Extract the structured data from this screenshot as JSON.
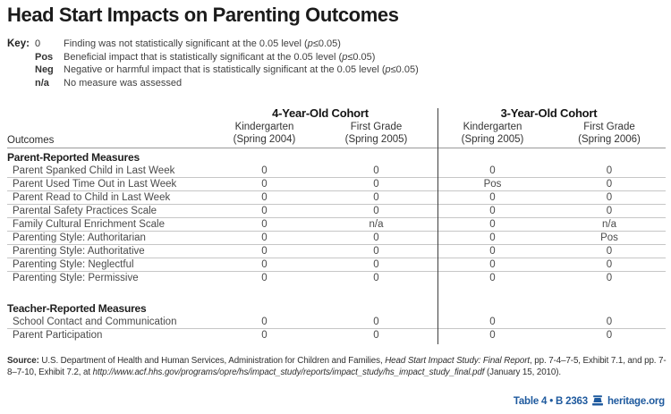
{
  "title": "Head Start Impacts on Parenting Outcomes",
  "key": {
    "label": "Key:",
    "items": [
      {
        "symbol": "0",
        "bold": false,
        "desc": "Finding was not statistically significant at the 0.05 level (p≤0.05)"
      },
      {
        "symbol": "Pos",
        "bold": true,
        "desc": "Beneficial impact that is statistically significant at the 0.05 level (p≤0.05)"
      },
      {
        "symbol": "Neg",
        "bold": true,
        "desc": "Negative or harmful impact that is statistically significant at the 0.05 level (p≤0.05)"
      },
      {
        "symbol": "n/a",
        "bold": true,
        "desc": "No measure was assessed"
      }
    ]
  },
  "table": {
    "outcomes_label": "Outcomes",
    "cohorts": [
      {
        "label": "4-Year-Old Cohort",
        "columns": [
          {
            "line1": "Kindergarten",
            "line2": "(Spring 2004)"
          },
          {
            "line1": "First Grade",
            "line2": "(Spring 2005)"
          }
        ]
      },
      {
        "label": "3-Year-Old Cohort",
        "columns": [
          {
            "line1": "Kindergarten",
            "line2": "(Spring 2005)"
          },
          {
            "line1": "First Grade",
            "line2": "(Spring 2006)"
          }
        ]
      }
    ],
    "groups": [
      {
        "heading": "Parent-Reported Measures",
        "rows": [
          {
            "label": "Parent Spanked Child in Last Week",
            "values": [
              "0",
              "0",
              "0",
              "0"
            ]
          },
          {
            "label": "Parent Used Time Out in Last Week",
            "values": [
              "0",
              "0",
              "Pos",
              "0"
            ]
          },
          {
            "label": "Parent Read to Child in Last Week",
            "values": [
              "0",
              "0",
              "0",
              "0"
            ]
          },
          {
            "label": "Parental Safety Practices Scale",
            "values": [
              "0",
              "0",
              "0",
              "0"
            ]
          },
          {
            "label": "Family Cultural Enrichment Scale",
            "values": [
              "0",
              "n/a",
              "0",
              "n/a"
            ]
          },
          {
            "label": "Parenting Style: Authoritarian",
            "values": [
              "0",
              "0",
              "0",
              "Pos"
            ]
          },
          {
            "label": "Parenting Style: Authoritative",
            "values": [
              "0",
              "0",
              "0",
              "0"
            ]
          },
          {
            "label": "Parenting Style: Neglectful",
            "values": [
              "0",
              "0",
              "0",
              "0"
            ]
          },
          {
            "label": "Parenting Style: Permissive",
            "values": [
              "0",
              "0",
              "0",
              "0"
            ]
          }
        ]
      },
      {
        "heading": "Teacher-Reported Measures",
        "rows": [
          {
            "label": "School Contact and Communication",
            "values": [
              "0",
              "0",
              "0",
              "0"
            ]
          },
          {
            "label": "Parent Participation",
            "values": [
              "0",
              "0",
              "0",
              "0"
            ]
          }
        ]
      }
    ]
  },
  "source": {
    "segments": [
      {
        "text": "Source: ",
        "style": "bold"
      },
      {
        "text": "U.S. Department of Health and Human Services, Administration for Children and Families, ",
        "style": "normal"
      },
      {
        "text": "Head Start Impact Study: Final Report",
        "style": "italic"
      },
      {
        "text": ", pp. 7-4–7-5, Exhibit 7.1, and pp. 7-8–7-10, Exhibit 7.2, at ",
        "style": "normal"
      },
      {
        "text": "http://www.acf.hhs.gov/programs/opre/hs/impact_study/reports/impact_study/hs_impact_study_final.pdf",
        "style": "italic"
      },
      {
        "text": " (January 15, 2010).",
        "style": "normal"
      }
    ]
  },
  "footer": {
    "table_ref": "Table 4 • B 2363",
    "site": "heritage.org",
    "logo": "heritage-bell-icon"
  },
  "colors": {
    "footer_blue": "#1f5a9e",
    "divider_gray": "#3f3f3f",
    "row_rule_gray": "#c6c6c6"
  }
}
